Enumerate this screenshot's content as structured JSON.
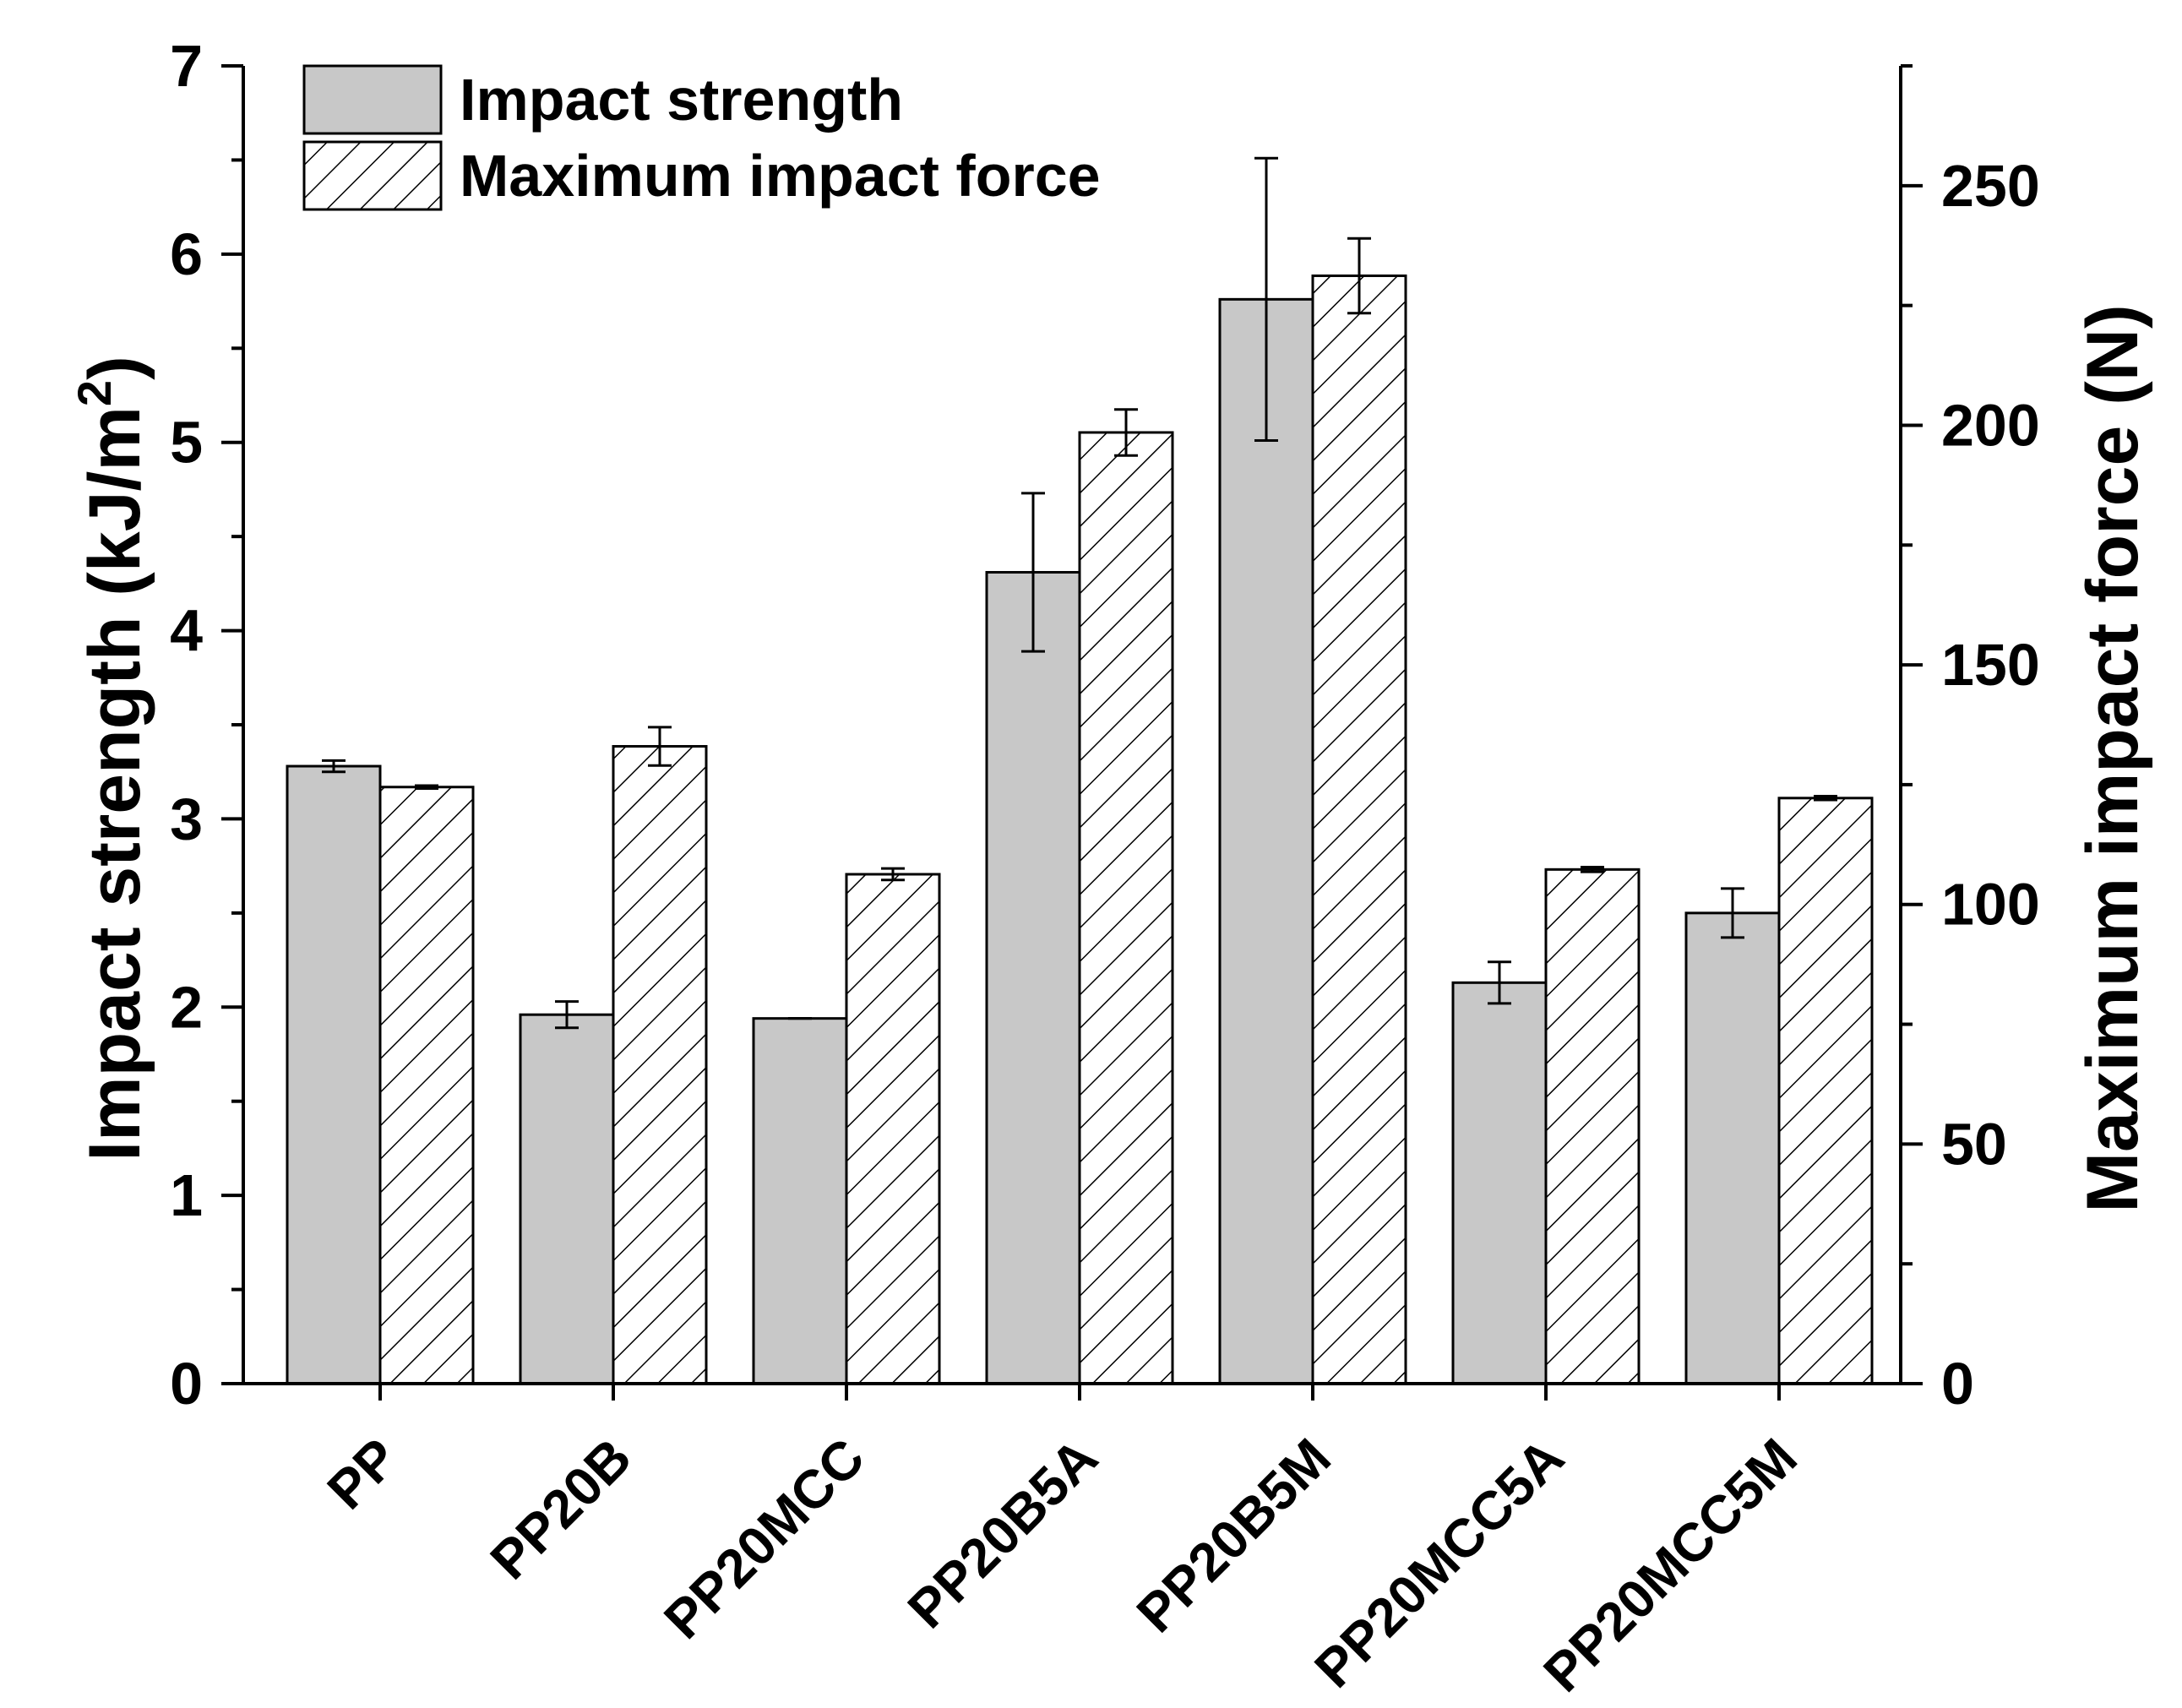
{
  "chart_data": {
    "type": "bar",
    "categories": [
      "PP",
      "PP20B",
      "PP20MCC",
      "PP20B5A",
      "PP20B5M",
      "PP20MCC5A",
      "PP20MCC5M"
    ],
    "series": [
      {
        "name": "Impact strength",
        "axis": "left",
        "fill": "#c8c8c8",
        "pattern": "solid",
        "values": [
          3.28,
          1.96,
          1.94,
          4.31,
          5.76,
          2.13,
          2.5
        ],
        "errors": [
          0.03,
          0.07,
          0.0,
          0.42,
          0.75,
          0.11,
          0.13
        ]
      },
      {
        "name": "Maximum impact force",
        "axis": "right",
        "fill": "#ffffff",
        "pattern": "hatch",
        "values": [
          124.5,
          133.0,
          106.3,
          198.5,
          231.2,
          107.3,
          122.2
        ],
        "errors": [
          0.3,
          4.0,
          1.2,
          4.8,
          7.8,
          0.5,
          0.4
        ]
      }
    ],
    "y_left": {
      "label_prefix": "Impact strength (kJ/m",
      "label_sup": "2",
      "label_suffix": ")",
      "range": [
        0,
        7
      ],
      "ticks": [
        "0",
        "1",
        "2",
        "3",
        "4",
        "5",
        "6",
        "7"
      ],
      "minor_step": 0.5
    },
    "y_right": {
      "label": "Maximum impact force (N)",
      "range": [
        0,
        275
      ],
      "ticks": [
        "0",
        "50",
        "100",
        "150",
        "200",
        "250"
      ],
      "minor_step": 25
    },
    "legend": {
      "position": "top-left",
      "entries": [
        "Impact strength",
        "Maximum impact force"
      ]
    },
    "grid": false,
    "colors": {
      "axis": "#000000",
      "bar_solid": "#c8c8c8",
      "bar_hatch_bg": "#ffffff",
      "hatch_line": "#000000"
    }
  }
}
